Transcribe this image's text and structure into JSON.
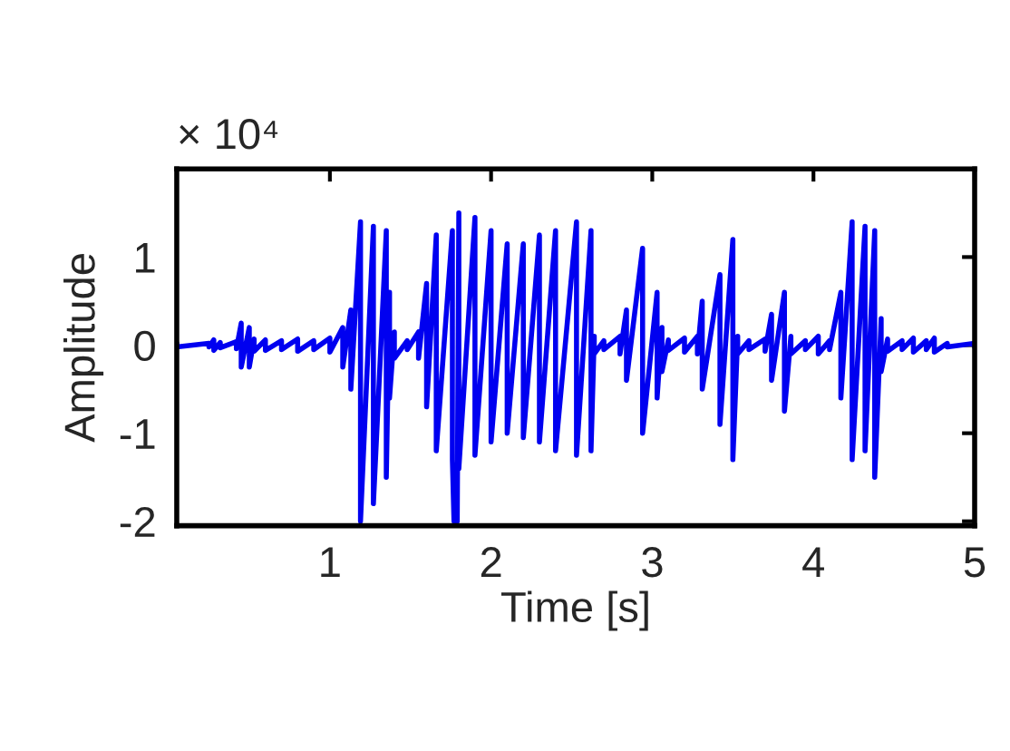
{
  "chart_data": {
    "type": "line",
    "xlabel": "Time [s]",
    "ylabel": "Amplitude",
    "annotations": [
      "× 10⁴"
    ],
    "xlim": [
      0.05,
      5
    ],
    "xticks": [
      1,
      2,
      3,
      4,
      5
    ],
    "ylim": [
      -2.05,
      2
    ],
    "yticks": [
      -2,
      -1,
      0,
      1
    ],
    "grid": false,
    "marker": "none",
    "line_style": "solid",
    "x": [
      0.05,
      0.05,
      0.25,
      0.25,
      0.28,
      0.28,
      0.32,
      0.32,
      0.42,
      0.42,
      0.45,
      0.45,
      0.5,
      0.5,
      0.53,
      0.53,
      0.6,
      0.6,
      0.7,
      0.7,
      0.8,
      0.8,
      0.9,
      0.9,
      1.0,
      1.0,
      1.08,
      1.08,
      1.13,
      1.13,
      1.19,
      1.19,
      1.27,
      1.27,
      1.35,
      1.35,
      1.37,
      1.37,
      1.4,
      1.4,
      1.48,
      1.48,
      1.55,
      1.55,
      1.6,
      1.6,
      1.66,
      1.66,
      1.76,
      1.76,
      1.77,
      1.79,
      1.8,
      1.8,
      1.9,
      1.9,
      2.0,
      2.0,
      2.1,
      2.1,
      2.2,
      2.2,
      2.3,
      2.3,
      2.4,
      2.4,
      2.53,
      2.53,
      2.62,
      2.62,
      2.64,
      2.64,
      2.7,
      2.7,
      2.8,
      2.8,
      2.84,
      2.84,
      2.94,
      2.94,
      3.03,
      3.03,
      3.06,
      3.06,
      3.1,
      3.1,
      3.2,
      3.2,
      3.28,
      3.28,
      3.31,
      3.31,
      3.42,
      3.42,
      3.5,
      3.5,
      3.53,
      3.53,
      3.6,
      3.6,
      3.7,
      3.7,
      3.74,
      3.74,
      3.82,
      3.82,
      3.86,
      3.86,
      3.95,
      3.95,
      4.03,
      4.03,
      4.1,
      4.1,
      4.17,
      4.17,
      4.24,
      4.24,
      4.32,
      4.32,
      4.38,
      4.38,
      4.42,
      4.42,
      4.46,
      4.46,
      4.55,
      4.55,
      4.62,
      4.62,
      4.7,
      4.7,
      4.75,
      4.75,
      4.83,
      4.83,
      5.0,
      5.0
    ],
    "series": [
      {
        "color": "#0000f0",
        "values": [
          0.02,
          -0.02,
          0.02,
          -0.02,
          0.06,
          -0.06,
          0.03,
          -0.03,
          0.04,
          -0.04,
          0.25,
          -0.25,
          0.2,
          -0.25,
          0.07,
          -0.07,
          0.06,
          -0.06,
          0.05,
          -0.05,
          0.07,
          -0.07,
          0.05,
          -0.05,
          0.08,
          -0.08,
          0.2,
          -0.25,
          0.4,
          -0.5,
          1.4,
          -2.0,
          1.35,
          -1.8,
          1.3,
          -1.5,
          0.6,
          -0.6,
          0.15,
          -0.15,
          0.05,
          -0.05,
          0.15,
          -0.15,
          0.7,
          -0.7,
          1.25,
          -1.2,
          1.3,
          -1.3,
          -2.0,
          -2.0,
          1.5,
          -1.4,
          1.45,
          -1.25,
          1.3,
          -1.1,
          1.15,
          -1.0,
          1.15,
          -1.05,
          1.25,
          -1.1,
          1.3,
          -1.2,
          1.4,
          -1.25,
          1.3,
          -1.2,
          0.1,
          -0.1,
          0.05,
          -0.05,
          0.1,
          -0.1,
          0.4,
          -0.4,
          1.1,
          -1.0,
          0.6,
          -0.6,
          0.2,
          -0.3,
          0.06,
          -0.06,
          0.08,
          -0.08,
          0.1,
          -0.1,
          0.5,
          -0.5,
          0.8,
          -0.9,
          1.2,
          -1.3,
          0.1,
          -0.1,
          0.05,
          -0.05,
          0.07,
          -0.07,
          0.35,
          -0.4,
          0.6,
          -0.75,
          0.1,
          -0.1,
          0.05,
          -0.05,
          0.1,
          -0.1,
          0.05,
          -0.05,
          0.6,
          -0.6,
          1.4,
          -1.3,
          1.35,
          -1.2,
          1.3,
          -1.5,
          0.3,
          -0.3,
          0.07,
          -0.07,
          0.05,
          -0.05,
          0.08,
          -0.08,
          0.05,
          -0.05,
          0.08,
          -0.08,
          0.02,
          -0.02,
          0.02,
          -0.02
        ]
      }
    ]
  }
}
